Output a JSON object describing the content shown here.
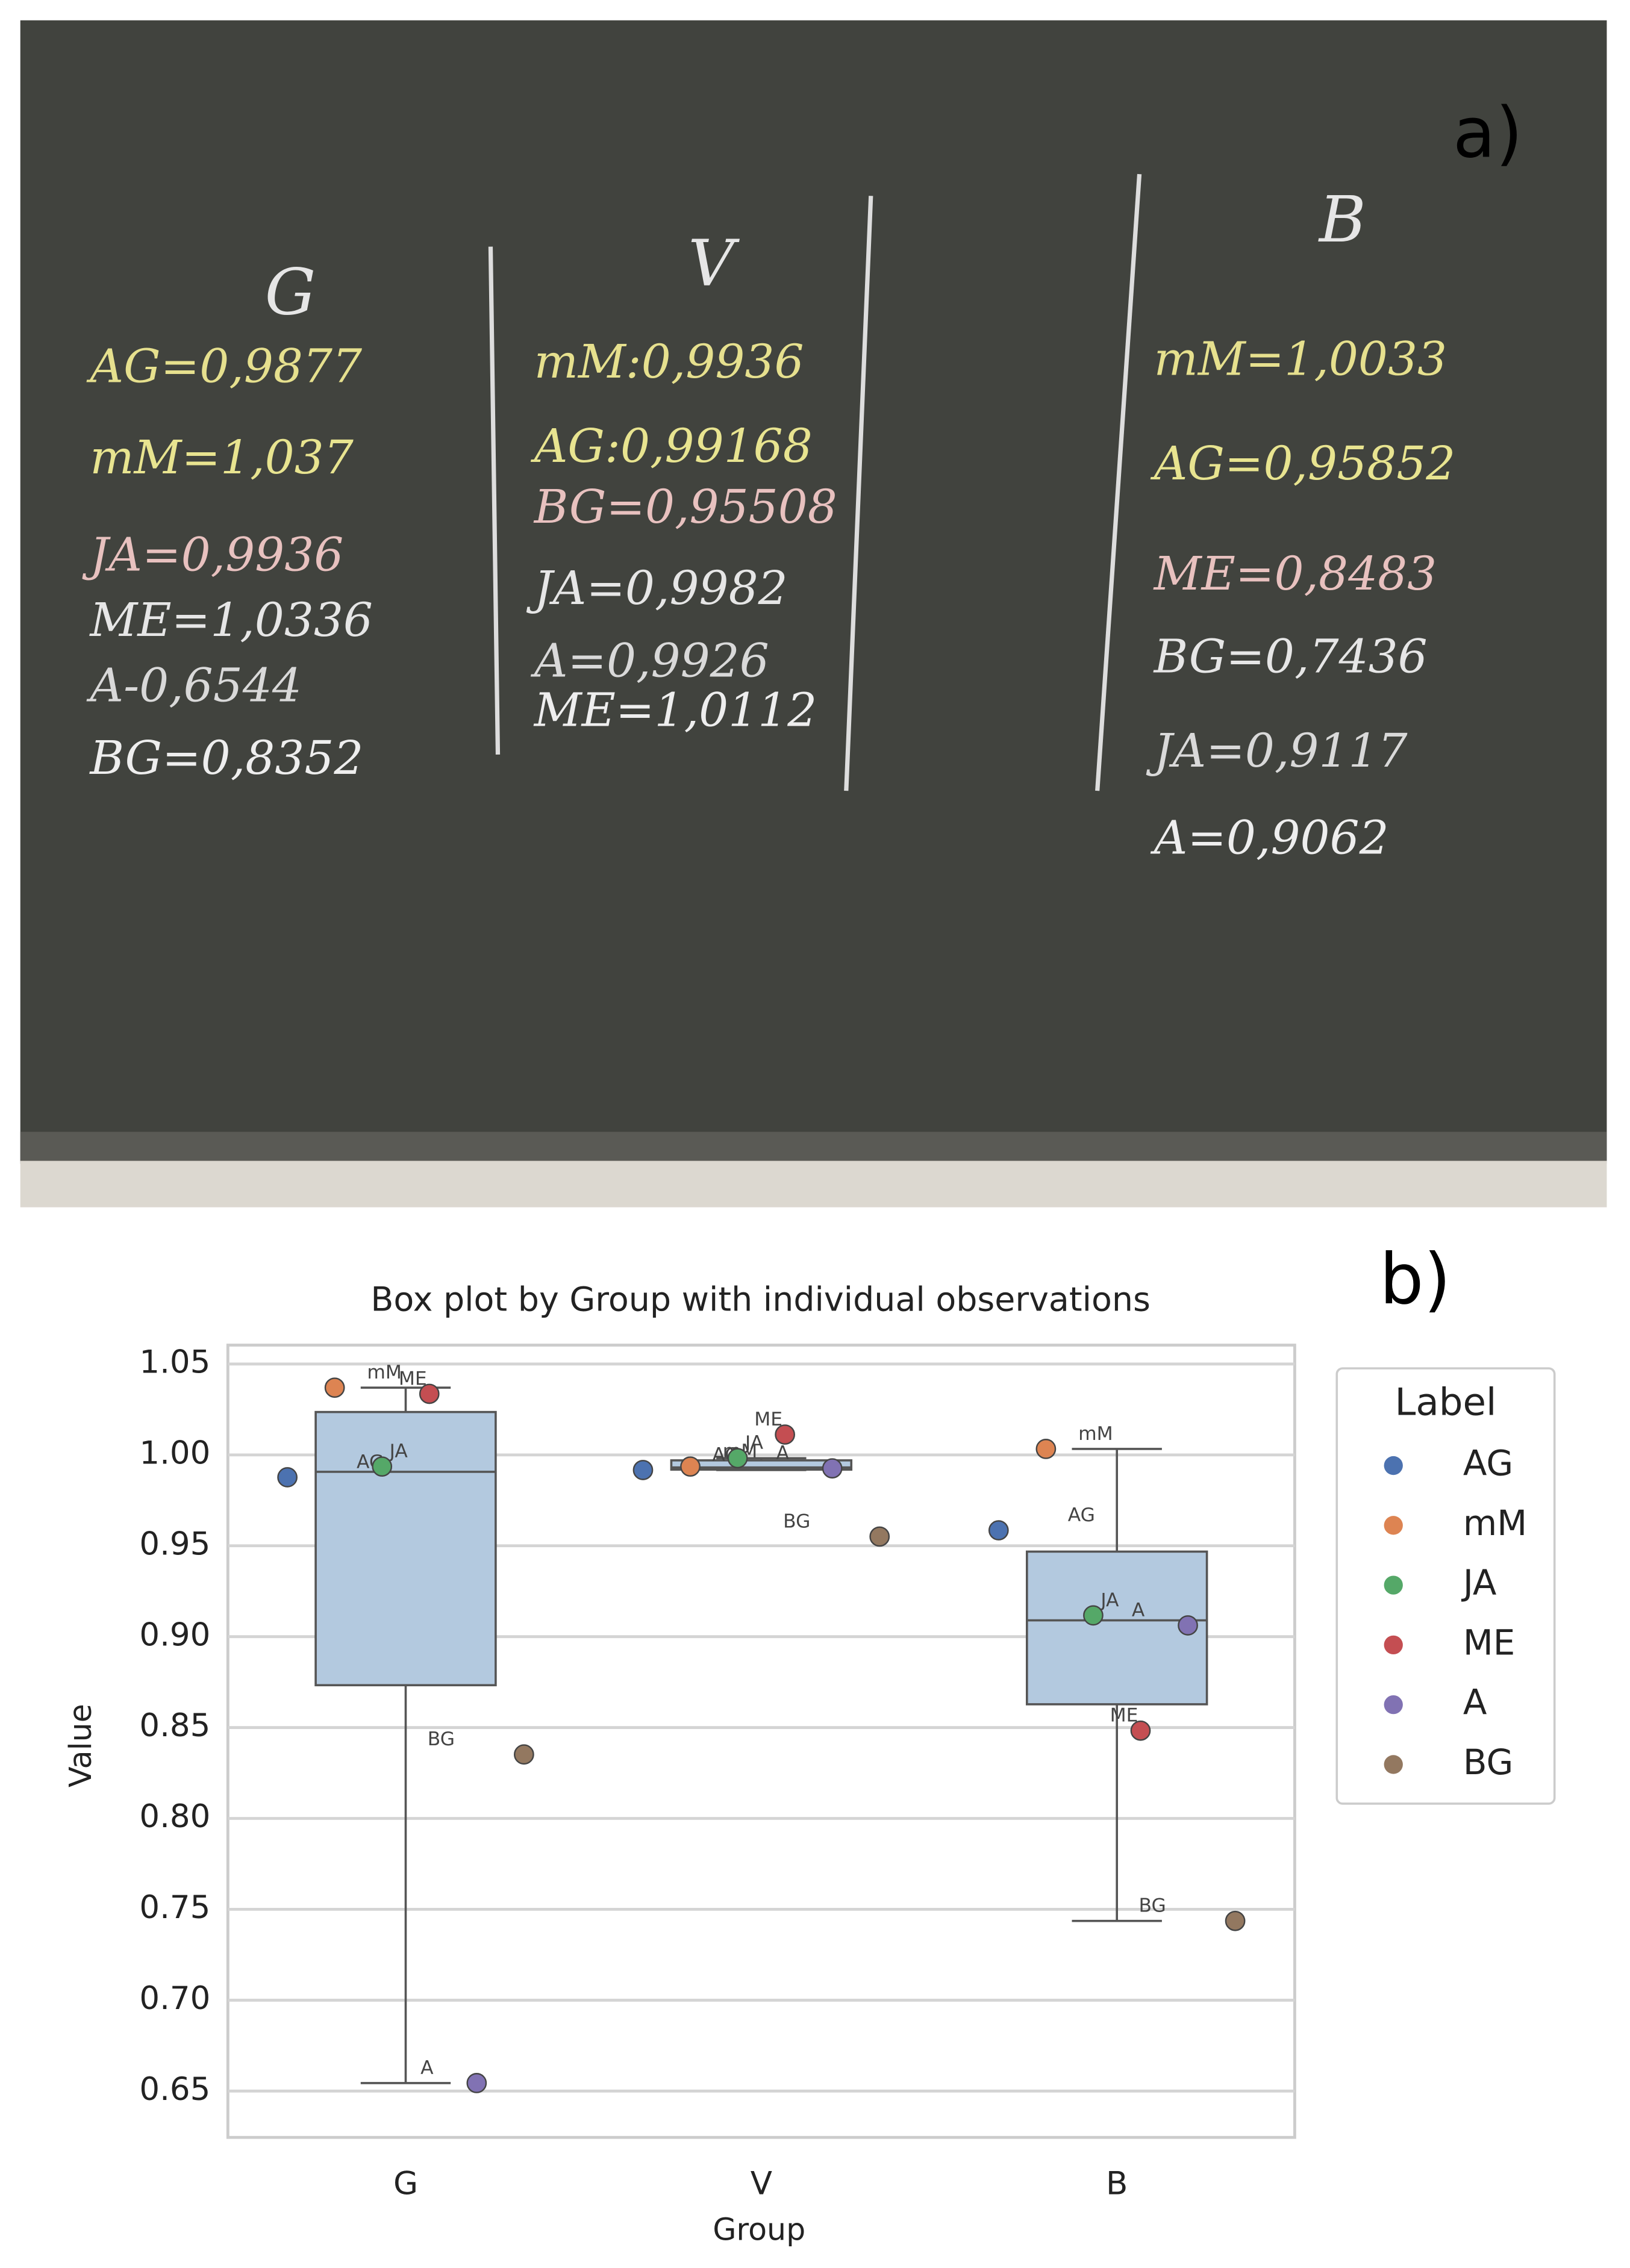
{
  "photo": {
    "label": "a)",
    "columns": [
      {
        "header": "G",
        "lines": [
          "AG=0,9877",
          "mM=1,037",
          "JA=0,9936",
          "ME=1,0336",
          "A-0,6544",
          "BG=0,8352"
        ]
      },
      {
        "header": "V",
        "lines": [
          "mM:0,9936",
          "AG:0,99168",
          "BG=0,95508",
          "JA=0,9982",
          "A=0,9926",
          "ME=1,0112"
        ]
      },
      {
        "header": "B",
        "lines": [
          "mM=1,0033",
          "AG=0,95852",
          "ME=0,8483",
          "BG=0,7436",
          "JA=0,9117",
          "A=0,9062"
        ]
      }
    ]
  },
  "chart_data": {
    "type": "box",
    "panel_label": "b)",
    "title": "Box plot by Group with individual observations",
    "x_label": "Group",
    "y_label": "Value",
    "categories": [
      "G",
      "V",
      "B"
    ],
    "ylim": [
      0.6245,
      1.0604
    ],
    "yticks": [
      0.65,
      {
        "value": 0.7,
        "label": "0.70"
      },
      0.75,
      {
        "value": 0.8,
        "label": "0.80"
      },
      0.85,
      {
        "value": 0.9,
        "label": "0.90"
      },
      0.95,
      {
        "value": 1,
        "label": "1.00"
      },
      1.05
    ],
    "grid": true,
    "box_color": "#b3c9df",
    "boxes": [
      {
        "whislo": 0.6544,
        "q1": 0.8733,
        "med": 0.9907,
        "q3": 1.0236,
        "whishi": 1.037
      },
      {
        "whislo": 0.9917,
        "q1": 0.9919,
        "med": 0.9931,
        "q3": 0.997,
        "whishi": 0.9982
      },
      {
        "whislo": 0.7436,
        "q1": 0.8628,
        "med": 0.909,
        "q3": 0.9468,
        "whishi": 1.0033
      }
    ],
    "legend_title": "Label",
    "legend_position": "outside right",
    "series": [
      {
        "name": "AG",
        "color": "#4c72b0",
        "values": [
          0.9877,
          0.99168,
          0.95852
        ]
      },
      {
        "name": "mM",
        "color": "#dd8452",
        "values": [
          1.037,
          0.9936,
          1.0033
        ]
      },
      {
        "name": "JA",
        "color": "#55a868",
        "values": [
          0.9936,
          0.9982,
          0.9117
        ]
      },
      {
        "name": "ME",
        "color": "#c44e52",
        "values": [
          1.0336,
          1.0112,
          0.8483
        ]
      },
      {
        "name": "A",
        "color": "#8172b3",
        "values": [
          0.6544,
          0.9926,
          0.9062
        ]
      },
      {
        "name": "BG",
        "color": "#937860",
        "values": [
          0.8352,
          0.95508,
          0.7436
        ]
      }
    ]
  }
}
